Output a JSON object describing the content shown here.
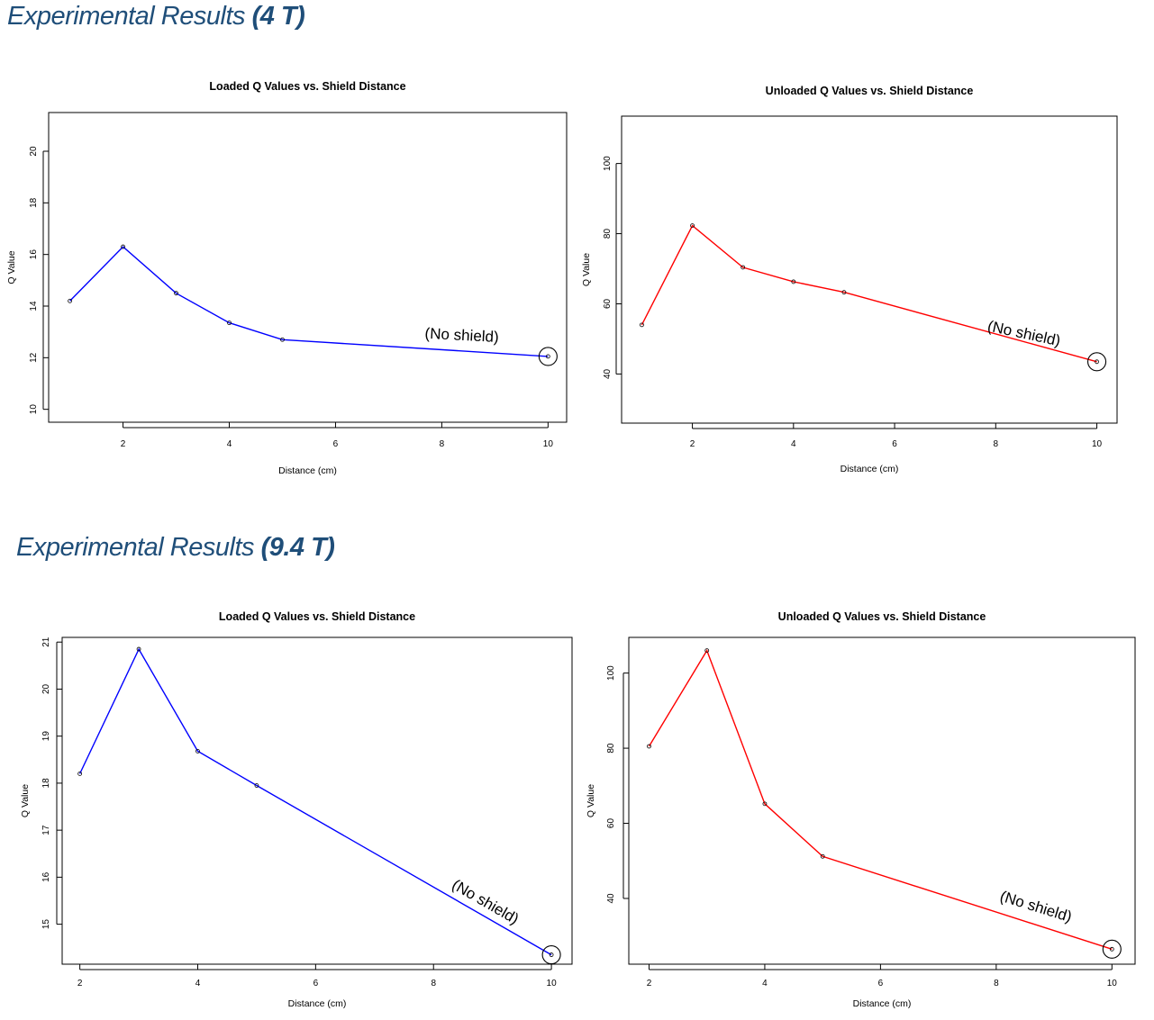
{
  "sections": [
    {
      "title_prefix": "Experimental Results ",
      "title_bold": "(4 T)"
    },
    {
      "title_prefix": "Experimental Results ",
      "title_bold": "(9.4 T)"
    }
  ],
  "chart_data": [
    {
      "type": "line",
      "title": "Loaded Q Values vs. Shield Distance",
      "xlabel": "Distance (cm)",
      "ylabel": "Q Value",
      "x": [
        1,
        2,
        3,
        4,
        5,
        10
      ],
      "series": [
        {
          "values": [
            14.2,
            16.3,
            14.5,
            13.35,
            12.7,
            12.05
          ],
          "color": "#0000ff"
        }
      ],
      "xlim": [
        0.6,
        10.35
      ],
      "ylim": [
        9.5,
        21.5
      ],
      "xticks": [
        2,
        4,
        6,
        8,
        10
      ],
      "yticks": [
        10,
        12,
        14,
        16,
        18,
        20
      ],
      "grid": false,
      "annotation": {
        "text": "(No shield)",
        "x": 10,
        "y": 12.05
      }
    },
    {
      "type": "line",
      "title": "Unloaded Q Values vs. Shield Distance",
      "xlabel": "Distance (cm)",
      "ylabel": "Q Value",
      "x": [
        1,
        2,
        3,
        4,
        5,
        10
      ],
      "series": [
        {
          "values": [
            54,
            82.3,
            70.4,
            66.3,
            63.3,
            43.5
          ],
          "color": "#ff0000"
        }
      ],
      "xlim": [
        0.6,
        10.4
      ],
      "ylim": [
        26,
        113.5
      ],
      "xticks": [
        2,
        4,
        6,
        8,
        10
      ],
      "yticks": [
        40,
        60,
        80,
        100
      ],
      "grid": false,
      "annotation": {
        "text": "(No shield)",
        "x": 10,
        "y": 43.5
      }
    },
    {
      "type": "line",
      "title": "Loaded Q Values vs. Shield Distance",
      "xlabel": "Distance (cm)",
      "ylabel": "Q Value",
      "x": [
        2,
        3,
        4,
        5,
        10
      ],
      "series": [
        {
          "values": [
            18.2,
            20.85,
            18.68,
            17.95,
            14.35
          ],
          "color": "#0000ff"
        }
      ],
      "xlim": [
        1.7,
        10.35
      ],
      "ylim": [
        14.15,
        21.1
      ],
      "xticks": [
        2,
        4,
        6,
        8,
        10
      ],
      "yticks": [
        15,
        16,
        17,
        18,
        19,
        20,
        21
      ],
      "grid": false,
      "annotation": {
        "text": "(No shield)",
        "x": 10,
        "y": 14.35
      }
    },
    {
      "type": "line",
      "title": "Unloaded Q Values vs. Shield Distance",
      "xlabel": "Distance (cm)",
      "ylabel": "Q Value",
      "x": [
        2,
        3,
        4,
        5,
        10
      ],
      "series": [
        {
          "values": [
            80.5,
            106,
            65.2,
            51.2,
            26.5
          ],
          "color": "#ff0000"
        }
      ],
      "xlim": [
        1.65,
        10.4
      ],
      "ylim": [
        22.5,
        109.5
      ],
      "xticks": [
        2,
        4,
        6,
        8,
        10
      ],
      "yticks": [
        40,
        60,
        80,
        100
      ],
      "grid": false,
      "annotation": {
        "text": "(No shield)",
        "x": 10,
        "y": 26.5
      }
    }
  ]
}
